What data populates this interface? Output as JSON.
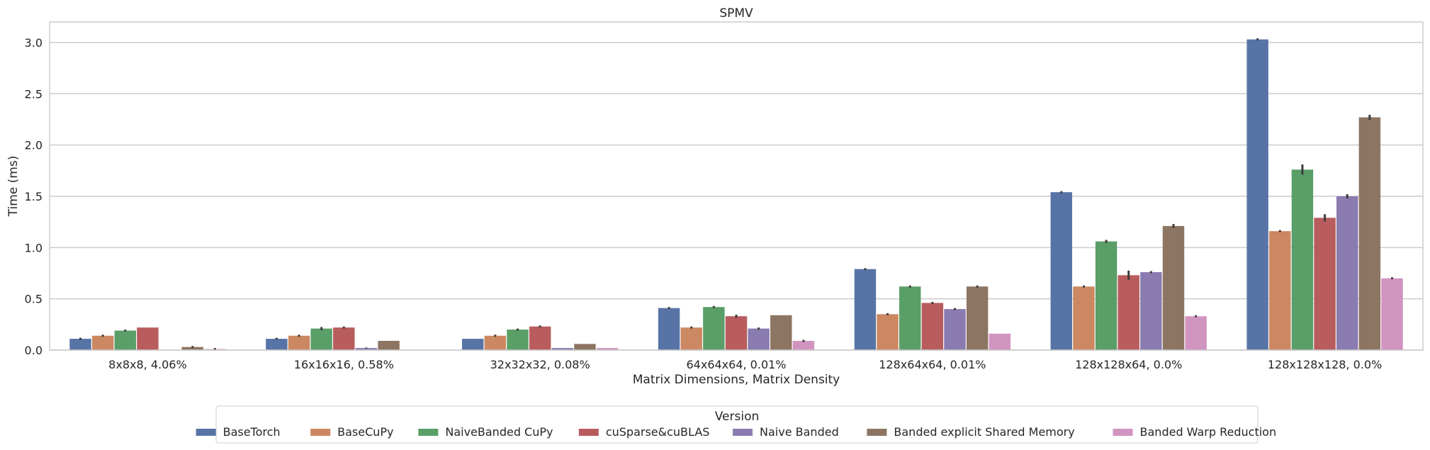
{
  "chart_data": {
    "type": "bar",
    "title": "SPMV",
    "xlabel": "Matrix Dimensions, Matrix Density",
    "ylabel": "Time (ms)",
    "ylim": [
      0,
      3.2
    ],
    "yticks": [
      "0.0",
      "0.5",
      "1.0",
      "1.5",
      "2.0",
      "2.5",
      "3.0"
    ],
    "grid": true,
    "categories": [
      "8x8x8, 4.06%",
      "16x16x16, 0.58%",
      "32x32x32, 0.08%",
      "64x64x64, 0.01%",
      "128x64x64, 0.01%",
      "128x128x64, 0.0%",
      "128x128x128, 0.0%"
    ],
    "legend": {
      "title": "Version",
      "placement": "bottom-center"
    },
    "series": [
      {
        "name": "BaseTorch",
        "color": "#5874a6",
        "values": [
          0.11,
          0.11,
          0.11,
          0.41,
          0.79,
          1.54,
          3.03
        ],
        "err": [
          0.02,
          0.02,
          0.0,
          0.02,
          0.02,
          0.02,
          0.02
        ]
      },
      {
        "name": "BaseCuPy",
        "color": "#cc8862",
        "values": [
          0.14,
          0.14,
          0.14,
          0.22,
          0.35,
          0.62,
          1.16
        ],
        "err": [
          0.02,
          0.02,
          0.02,
          0.02,
          0.02,
          0.02,
          0.02
        ]
      },
      {
        "name": "NaiveBanded CuPy",
        "color": "#5a9e68",
        "values": [
          0.19,
          0.21,
          0.2,
          0.42,
          0.62,
          1.06,
          1.76
        ],
        "err": [
          0.02,
          0.03,
          0.02,
          0.02,
          0.02,
          0.03,
          0.1
        ]
      },
      {
        "name": "cuSparse&cuBLAS",
        "color": "#b85c5d",
        "values": [
          0.22,
          0.22,
          0.23,
          0.33,
          0.46,
          0.73,
          1.29
        ],
        "err": [
          0.0,
          0.02,
          0.02,
          0.03,
          0.02,
          0.09,
          0.07
        ]
      },
      {
        "name": "Naive Banded",
        "color": "#8a7bb0",
        "values": [
          0.0,
          0.02,
          0.02,
          0.21,
          0.4,
          0.76,
          1.5
        ],
        "err": [
          0.0,
          0.01,
          0.0,
          0.02,
          0.02,
          0.02,
          0.04
        ]
      },
      {
        "name": "Banded explicit Shared Memory",
        "color": "#8c7562",
        "values": [
          0.03,
          0.09,
          0.06,
          0.34,
          0.62,
          1.21,
          2.27
        ],
        "err": [
          0.02,
          0.0,
          0.0,
          0.0,
          0.02,
          0.04,
          0.05
        ]
      },
      {
        "name": "Banded Warp Reduction",
        "color": "#d194c0",
        "values": [
          0.01,
          0.0,
          0.02,
          0.09,
          0.16,
          0.33,
          0.7
        ],
        "err": [
          0.02,
          0.0,
          0.0,
          0.02,
          0.0,
          0.02,
          0.02
        ]
      }
    ]
  }
}
